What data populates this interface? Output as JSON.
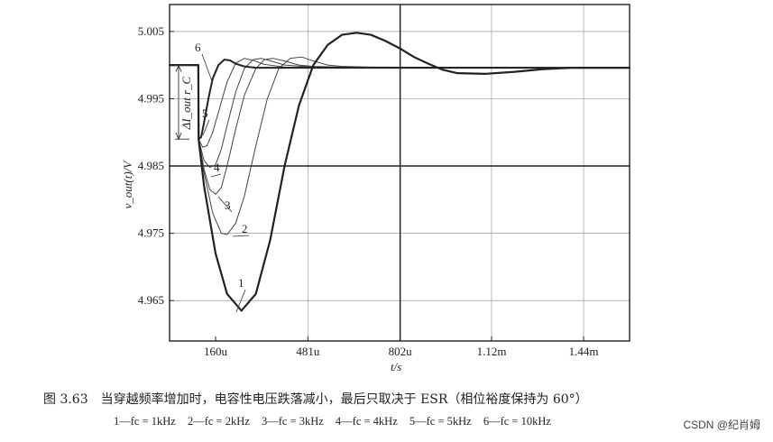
{
  "figure": {
    "caption": "图 3.63　当穿越频率增加时，电容性电压跌落减小，最后只取决于 ESR（相位裕度保持为 60°）",
    "legend_line": [
      "1—fc = 1kHz",
      "2—fc = 2kHz",
      "3—fc = 3kHz",
      "4—fc = 4kHz",
      "5—fc = 5kHz",
      "6—fc = 10kHz"
    ],
    "watermark": "CSDN @纪肖姆"
  },
  "chart_data": {
    "type": "line",
    "xlabel": "t/s",
    "ylabel": "v_out(t)/V",
    "xlim": [
      0,
      1.6
    ],
    "ylim": [
      4.959,
      5.009
    ],
    "x_unit": "ms",
    "x_ticks": [
      {
        "value": 0.16,
        "label": "160u"
      },
      {
        "value": 0.481,
        "label": "481u"
      },
      {
        "value": 0.802,
        "label": "802u"
      },
      {
        "value": 1.12,
        "label": "1.12m"
      },
      {
        "value": 1.44,
        "label": "1.44m"
      }
    ],
    "y_ticks": [
      {
        "value": 5.005,
        "label": "5.005"
      },
      {
        "value": 4.995,
        "label": "4.995"
      },
      {
        "value": 4.985,
        "label": "4.985"
      },
      {
        "value": 4.975,
        "label": "4.975"
      },
      {
        "value": 4.965,
        "label": "4.965"
      }
    ],
    "grid": {
      "vertical": [
        0.481,
        0.802,
        1.12,
        1.44
      ],
      "horizontal": [
        4.995,
        4.985,
        4.975,
        4.965,
        5.005
      ]
    },
    "reference_lines": {
      "vertical_x": 0.802,
      "horizontal_y": 4.985
    },
    "annotation": {
      "text": "ΔI_out r_C",
      "from": 4.99995,
      "to": 4.989
    },
    "series": [
      {
        "name": "1",
        "color": "#222222",
        "width": 2.2,
        "x": [
          0,
          0.1,
          0.101,
          0.12,
          0.16,
          0.2,
          0.25,
          0.3,
          0.35,
          0.4,
          0.45,
          0.5,
          0.55,
          0.6,
          0.65,
          0.7,
          0.75,
          0.8,
          0.85,
          0.9,
          0.95,
          1.0,
          1.1,
          1.2,
          1.3,
          1.4,
          1.5,
          1.6
        ],
        "y": [
          5.0,
          5.0,
          4.989,
          4.982,
          4.972,
          4.966,
          4.9635,
          4.966,
          4.974,
          4.985,
          4.994,
          5.0,
          5.003,
          5.0045,
          5.0048,
          5.0045,
          5.0036,
          5.0025,
          5.0012,
          5.0002,
          4.9993,
          4.9988,
          4.9987,
          4.999,
          4.9994,
          4.9996,
          4.9996,
          4.9996
        ]
      },
      {
        "name": "2",
        "color": "#444444",
        "width": 1.0,
        "x": [
          0,
          0.1,
          0.101,
          0.12,
          0.15,
          0.18,
          0.2,
          0.23,
          0.26,
          0.3,
          0.34,
          0.38,
          0.42,
          0.46,
          0.5,
          0.55,
          0.6,
          0.7,
          1.6
        ],
        "y": [
          5.0,
          5.0,
          4.989,
          4.984,
          4.978,
          4.975,
          4.9748,
          4.9765,
          4.9805,
          4.988,
          4.995,
          4.9995,
          5.001,
          5.0012,
          5.0006,
          5.0,
          4.9998,
          4.9997,
          4.9996
        ]
      },
      {
        "name": "3",
        "color": "#444444",
        "width": 1.0,
        "x": [
          0,
          0.1,
          0.101,
          0.12,
          0.14,
          0.16,
          0.18,
          0.2,
          0.23,
          0.26,
          0.3,
          0.33,
          0.36,
          0.4,
          0.45,
          0.5,
          0.6,
          1.6
        ],
        "y": [
          5.0,
          5.0,
          4.989,
          4.9845,
          4.9815,
          4.9808,
          4.9818,
          4.985,
          4.9905,
          4.9955,
          4.9995,
          5.0008,
          5.001,
          5.0006,
          5.0,
          4.9998,
          4.9997,
          4.9996
        ]
      },
      {
        "name": "4",
        "color": "#444444",
        "width": 1.0,
        "x": [
          0,
          0.1,
          0.101,
          0.12,
          0.14,
          0.16,
          0.18,
          0.2,
          0.23,
          0.26,
          0.29,
          0.32,
          0.36,
          0.4,
          0.5,
          1.6
        ],
        "y": [
          5.0,
          5.0,
          4.989,
          4.9858,
          4.9848,
          4.9852,
          4.9875,
          4.991,
          4.996,
          4.9995,
          5.0008,
          5.001,
          5.0005,
          5.0,
          4.9997,
          4.9996
        ]
      },
      {
        "name": "5",
        "color": "#444444",
        "width": 1.0,
        "x": [
          0,
          0.1,
          0.101,
          0.115,
          0.13,
          0.15,
          0.17,
          0.2,
          0.23,
          0.26,
          0.29,
          0.33,
          0.4,
          1.6
        ],
        "y": [
          5.0,
          5.0,
          4.989,
          4.9878,
          4.988,
          4.99,
          4.993,
          4.9975,
          5.0003,
          5.001,
          5.0007,
          5.0001,
          4.9997,
          4.9996
        ]
      },
      {
        "name": "6",
        "color": "#222222",
        "width": 2.0,
        "x": [
          0,
          0.1,
          0.101,
          0.11,
          0.12,
          0.135,
          0.15,
          0.17,
          0.19,
          0.21,
          0.23,
          0.26,
          0.3,
          1.6
        ],
        "y": [
          5.0,
          5.0,
          4.989,
          4.9893,
          4.9915,
          4.995,
          4.998,
          5.0,
          5.0008,
          5.0007,
          5.0002,
          4.9998,
          4.9996,
          4.9996
        ]
      }
    ]
  }
}
